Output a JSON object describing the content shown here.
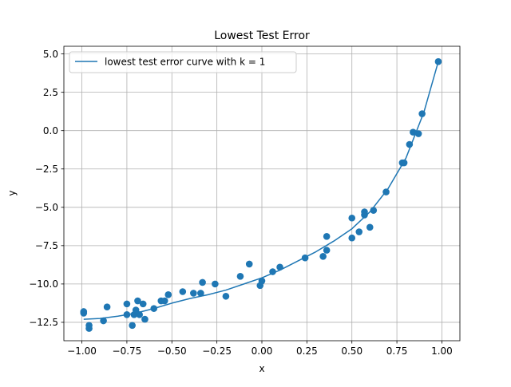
{
  "chart_data": {
    "type": "scatter",
    "title": "Lowest Test Error",
    "xlabel": "x",
    "ylabel": "y",
    "xlim": [
      -1.1,
      1.1
    ],
    "ylim": [
      -13.7,
      5.5
    ],
    "xticks": [
      -1.0,
      -0.75,
      -0.5,
      -0.25,
      0.0,
      0.25,
      0.5,
      0.75,
      1.0
    ],
    "xtick_labels": [
      "−1.00",
      "−0.75",
      "−0.50",
      "−0.25",
      "0.00",
      "0.25",
      "0.50",
      "0.75",
      "1.00"
    ],
    "yticks": [
      5.0,
      2.5,
      0.0,
      -2.5,
      -5.0,
      -7.5,
      -10.0,
      -12.5
    ],
    "ytick_labels": [
      "5.0",
      "2.5",
      "0.0",
      "−2.5",
      "−5.0",
      "−7.5",
      "−10.0",
      "−12.5"
    ],
    "grid": true,
    "legend_position": "top-left",
    "colors": {
      "series": "#1f77b4",
      "grid": "#b0b0b0",
      "axes": "#000000"
    },
    "series": [
      {
        "name": "lowest test error curve with k = 1",
        "kind": "line",
        "x": [
          -0.99,
          -0.9,
          -0.8,
          -0.7,
          -0.6,
          -0.5,
          -0.4,
          -0.3,
          -0.2,
          -0.1,
          0.0,
          0.1,
          0.2,
          0.3,
          0.4,
          0.5,
          0.6,
          0.7,
          0.8,
          0.9,
          0.98
        ],
        "y": [
          -12.3,
          -12.25,
          -12.1,
          -11.9,
          -11.6,
          -11.25,
          -10.95,
          -10.7,
          -10.4,
          -10.0,
          -9.6,
          -9.1,
          -8.5,
          -7.9,
          -7.2,
          -6.4,
          -5.3,
          -3.8,
          -1.8,
          1.2,
          4.5
        ]
      },
      {
        "name": "",
        "kind": "scatter",
        "x": [
          -0.99,
          -0.99,
          -0.96,
          -0.96,
          -0.88,
          -0.86,
          -0.75,
          -0.75,
          -0.72,
          -0.71,
          -0.7,
          -0.69,
          -0.68,
          -0.66,
          -0.65,
          -0.6,
          -0.56,
          -0.54,
          -0.52,
          -0.44,
          -0.38,
          -0.34,
          -0.33,
          -0.26,
          -0.2,
          -0.12,
          -0.07,
          -0.01,
          0.0,
          0.06,
          0.1,
          0.24,
          0.34,
          0.36,
          0.36,
          0.5,
          0.5,
          0.54,
          0.57,
          0.57,
          0.6,
          0.62,
          0.69,
          0.78,
          0.79,
          0.82,
          0.84,
          0.87,
          0.89,
          0.98
        ],
        "y": [
          -11.8,
          -11.9,
          -12.7,
          -12.9,
          -12.4,
          -11.5,
          -11.3,
          -12.0,
          -12.7,
          -12.0,
          -11.7,
          -11.1,
          -12.0,
          -11.3,
          -12.3,
          -11.6,
          -11.1,
          -11.1,
          -10.7,
          -10.5,
          -10.6,
          -10.6,
          -9.9,
          -10.0,
          -10.8,
          -9.5,
          -8.7,
          -10.1,
          -9.8,
          -9.2,
          -8.9,
          -8.3,
          -8.2,
          -7.8,
          -6.9,
          -7.0,
          -5.7,
          -6.6,
          -5.3,
          -5.5,
          -6.3,
          -5.2,
          -4.0,
          -2.1,
          -2.1,
          -0.9,
          -0.1,
          -0.2,
          1.1,
          4.5
        ]
      }
    ]
  }
}
